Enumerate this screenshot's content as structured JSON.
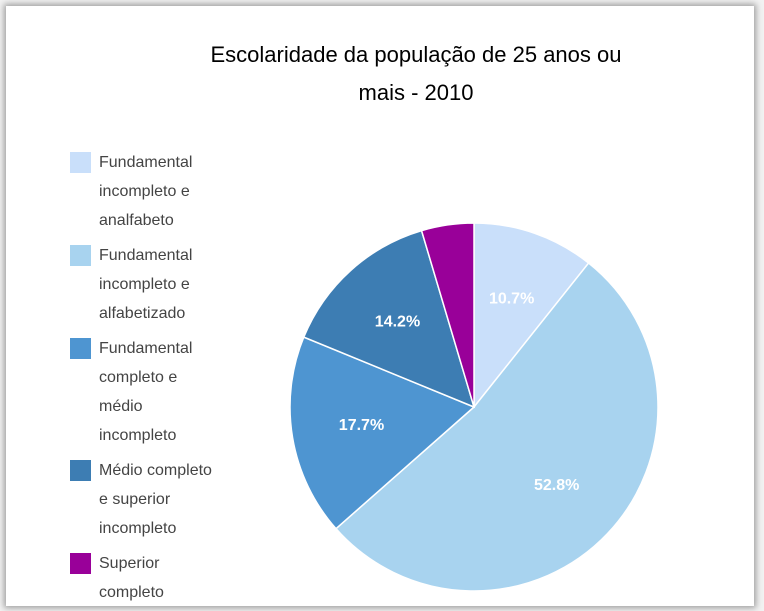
{
  "chart_data": {
    "type": "pie",
    "title": "Escolaridade da população de 25 anos ou mais - 2010",
    "categories": [
      "Fundamental incompleto e analfabeto",
      "Fundamental incompleto e alfabetizado",
      "Fundamental completo e médio incompleto",
      "Médio completo e superior incompleto",
      "Superior completo"
    ],
    "values": [
      10.7,
      52.8,
      17.7,
      14.2,
      4.6
    ],
    "value_labels": [
      "10.7%",
      "52.8%",
      "17.7%",
      "14.2%",
      null
    ],
    "colors": [
      "#c9dffa",
      "#a8d3ef",
      "#4e95d1",
      "#3d7db3",
      "#990099"
    ],
    "legend": "left"
  }
}
